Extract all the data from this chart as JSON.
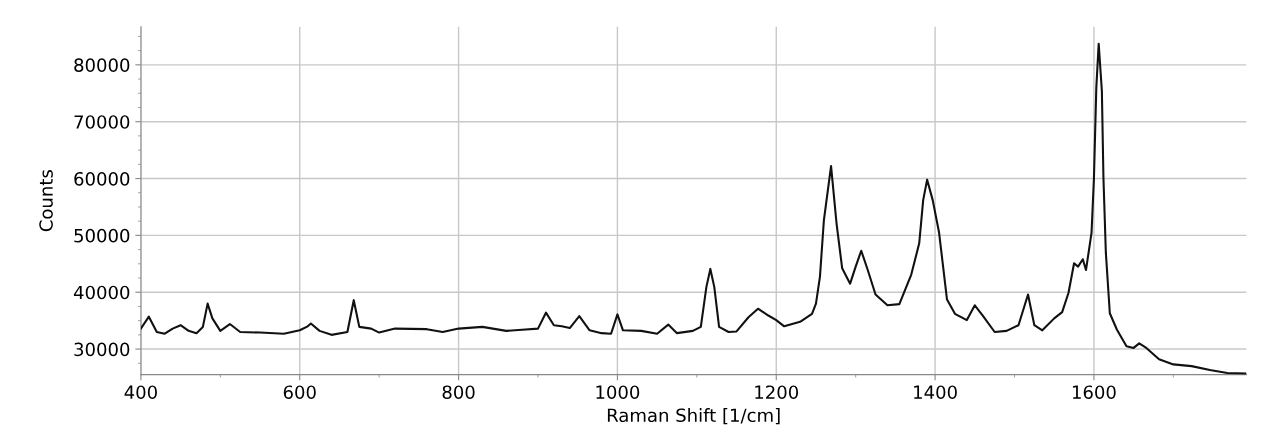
{
  "chart_data": {
    "type": "line",
    "xlabel": "Raman Shift [1/cm]",
    "ylabel": "Counts",
    "xlim": [
      400,
      1792
    ],
    "ylim": [
      25500,
      86700
    ],
    "xticks": [
      400,
      600,
      800,
      1000,
      1200,
      1400,
      1600
    ],
    "yticks": [
      30000,
      40000,
      50000,
      60000,
      70000,
      80000
    ],
    "grid": true,
    "legend": false,
    "marker": "none",
    "line_style": "solid",
    "series": [
      {
        "color": "#111111",
        "x": [
          400,
          410,
          420,
          430,
          440,
          450,
          460,
          470,
          478,
          484,
          490,
          500,
          512,
          525,
          550,
          580,
          600,
          610,
          614,
          625,
          640,
          660,
          668,
          675,
          690,
          700,
          720,
          760,
          780,
          800,
          830,
          860,
          880,
          900,
          910,
          920,
          930,
          940,
          952,
          965,
          980,
          992,
          1000,
          1007,
          1030,
          1050,
          1064,
          1075,
          1095,
          1105,
          1112,
          1117,
          1122,
          1128,
          1140,
          1150,
          1165,
          1177,
          1190,
          1200,
          1210,
          1230,
          1245,
          1250,
          1255,
          1260,
          1269,
          1276,
          1283,
          1293,
          1300,
          1307,
          1315,
          1325,
          1340,
          1355,
          1370,
          1380,
          1385,
          1390,
          1397,
          1405,
          1415,
          1425,
          1440,
          1450,
          1460,
          1475,
          1490,
          1505,
          1517,
          1525,
          1535,
          1550,
          1560,
          1568,
          1575,
          1580,
          1586,
          1590,
          1595,
          1597,
          1600,
          1603,
          1606,
          1610,
          1612,
          1615,
          1620,
          1629,
          1641,
          1650,
          1657,
          1666,
          1682,
          1700,
          1723,
          1746,
          1768,
          1791
        ],
        "values": [
          33600,
          35700,
          33000,
          32700,
          33600,
          34200,
          33200,
          32800,
          33900,
          38000,
          35400,
          33200,
          34400,
          33000,
          32900,
          32700,
          33300,
          34000,
          34500,
          33200,
          32500,
          33000,
          38600,
          33900,
          33600,
          32900,
          33600,
          33500,
          33000,
          33600,
          33900,
          33200,
          33400,
          33600,
          36400,
          34200,
          34000,
          33700,
          35800,
          33300,
          32800,
          32700,
          36100,
          33300,
          33200,
          32700,
          34300,
          32800,
          33200,
          33900,
          40900,
          44100,
          40900,
          33900,
          33000,
          33100,
          35600,
          37100,
          35900,
          35100,
          34000,
          34800,
          36200,
          38000,
          42700,
          52700,
          62200,
          52000,
          44200,
          41500,
          44500,
          47300,
          44000,
          39600,
          37700,
          37900,
          43100,
          48600,
          56200,
          59800,
          56200,
          50500,
          38700,
          36200,
          35100,
          37700,
          35900,
          33000,
          33200,
          34200,
          39600,
          34200,
          33300,
          35400,
          36500,
          39900,
          45100,
          44500,
          45800,
          43900,
          48600,
          50500,
          60000,
          76000,
          83700,
          75400,
          60000,
          47000,
          36300,
          33400,
          30500,
          30200,
          31000,
          30200,
          28200,
          27300,
          27000,
          26300,
          25800,
          25700
        ]
      }
    ]
  }
}
